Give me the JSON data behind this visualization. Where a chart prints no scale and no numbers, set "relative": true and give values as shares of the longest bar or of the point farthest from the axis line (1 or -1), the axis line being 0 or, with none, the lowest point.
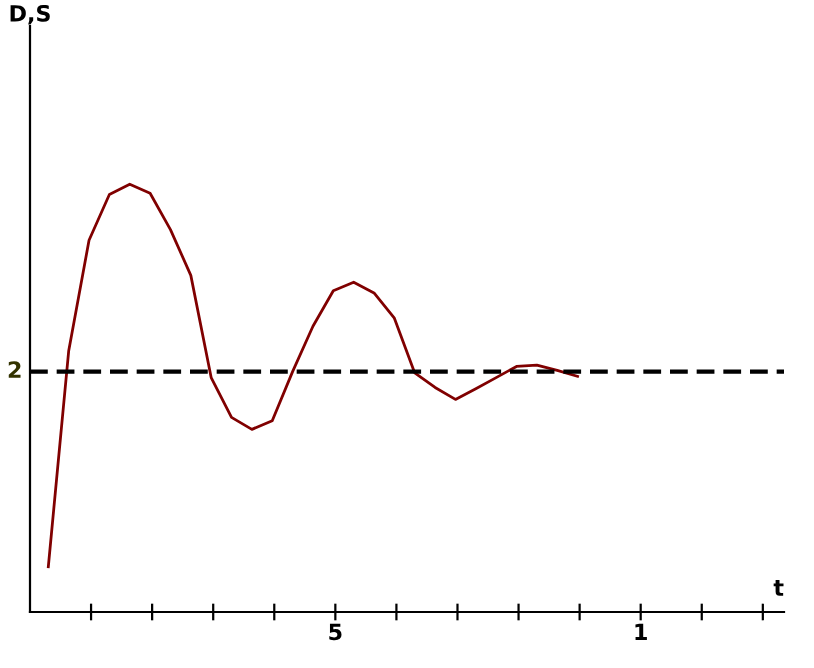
{
  "chart_data": {
    "type": "line",
    "relative": true,
    "categories": [
      null,
      null,
      null,
      null,
      null,
      null,
      null,
      null,
      null,
      null,
      null,
      null,
      null,
      null,
      null,
      null,
      null,
      null,
      null,
      null,
      null,
      null,
      null,
      null,
      null,
      null,
      null
    ],
    "series": [
      {
        "color": "#800000",
        "values": [
          0.106,
          0.61,
          0.869,
          0.976,
          1.0,
          0.979,
          0.894,
          0.787,
          0.548,
          0.455,
          0.427,
          0.447,
          0.562,
          0.668,
          0.751,
          0.771,
          0.746,
          0.687,
          0.559,
          0.525,
          0.497,
          0.522,
          0.548,
          0.574,
          0.577,
          0.565,
          0.551
        ]
      }
    ],
    "ref_lines": [
      {
        "axis": "y",
        "value": 0.562,
        "color": "#000000",
        "line_style": "dashed"
      }
    ],
    "annotations": [
      "2",
      "5",
      "1",
      "t",
      "D,S"
    ],
    "grid": false,
    "legend": false,
    "marker": "none",
    "line_style": "solid"
  }
}
